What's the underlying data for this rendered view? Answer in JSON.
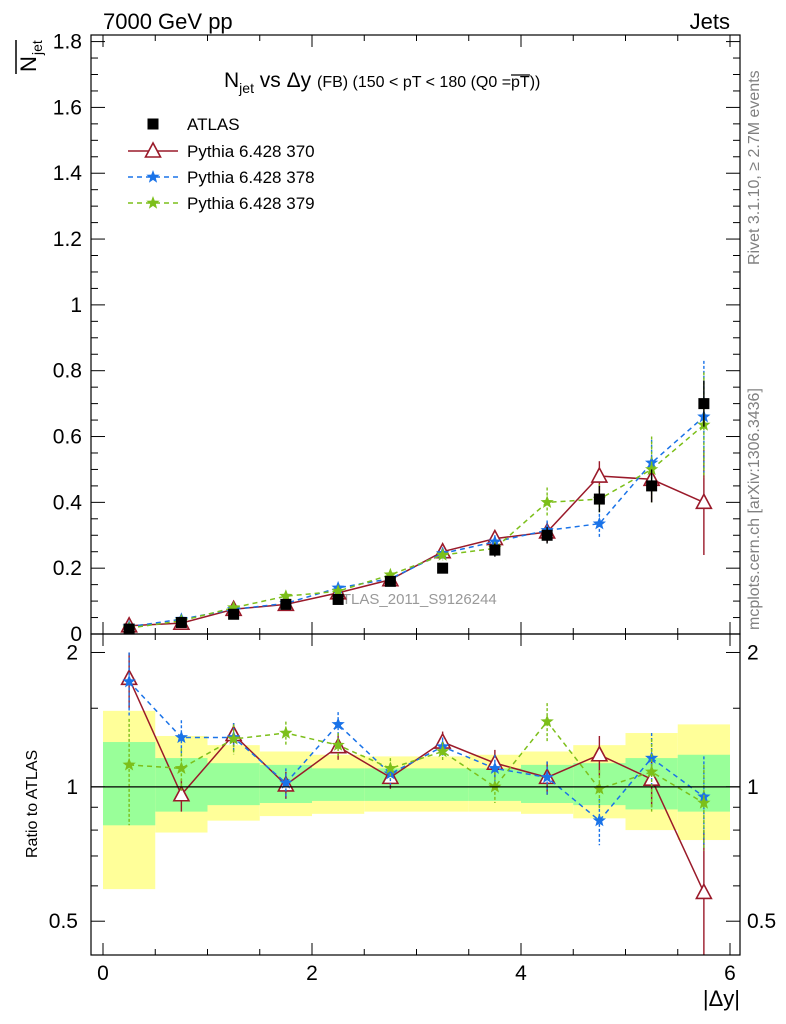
{
  "header": {
    "left": "7000 GeV pp",
    "right": "Jets"
  },
  "side_text": {
    "rivet": "Rivet 3.1.10, ≥ 2.7M events",
    "mcplots": "mcplots.cern.ch [arXiv:1306.3436]"
  },
  "watermark": "ATLAS_2011_S9126244",
  "chart_data": {
    "type": "scatter",
    "title": {
      "prefix": "N",
      "sub": "jet",
      "mid": " vs Δy ",
      "fb": "(FB)",
      "cut": " (150 < pT < 180 (Q0 =",
      "over": "pT",
      "close": "))"
    },
    "ylabel_main": {
      "over": "N",
      "sub": "jet"
    },
    "ylabel_ratio": "Ratio to ATLAS",
    "xlabel": "|Δy|",
    "xlim": [
      0,
      6
    ],
    "ylim": [
      0,
      1.82
    ],
    "ratio_ylim": [
      0.42,
      2.2
    ],
    "x": [
      0.25,
      0.75,
      1.25,
      1.75,
      2.25,
      2.75,
      3.25,
      3.75,
      4.25,
      4.75,
      5.25,
      5.75
    ],
    "x_tick_labels": [
      "0",
      "2",
      "4",
      "6"
    ],
    "x_tick_values": [
      0,
      2,
      4,
      6
    ],
    "y_tick_labels": [
      "0",
      "0.2",
      "0.4",
      "0.6",
      "0.8",
      "1",
      "1.2",
      "1.4",
      "1.6",
      "1.8"
    ],
    "y_tick_values": [
      0,
      0.2,
      0.4,
      0.6,
      0.8,
      1.0,
      1.2,
      1.4,
      1.6,
      1.8
    ],
    "ratio_tick_labels": [
      "0.5",
      "1",
      "2"
    ],
    "ratio_tick_values": [
      0.5,
      1,
      2
    ],
    "bands": {
      "edges": [
        0,
        0.5,
        1.0,
        1.5,
        2.0,
        2.5,
        3.0,
        3.5,
        4.0,
        4.5,
        5.0,
        5.5,
        6.0
      ],
      "yellow_lo": [
        0.59,
        0.79,
        0.84,
        0.86,
        0.87,
        0.88,
        0.88,
        0.88,
        0.87,
        0.85,
        0.8,
        0.76
      ],
      "yellow_hi": [
        1.48,
        1.3,
        1.24,
        1.2,
        1.18,
        1.17,
        1.17,
        1.18,
        1.2,
        1.24,
        1.32,
        1.38
      ],
      "green_lo": [
        0.82,
        0.88,
        0.91,
        0.92,
        0.93,
        0.93,
        0.93,
        0.93,
        0.92,
        0.91,
        0.89,
        0.88
      ],
      "green_hi": [
        1.26,
        1.16,
        1.13,
        1.12,
        1.1,
        1.1,
        1.1,
        1.1,
        1.12,
        1.13,
        1.16,
        1.18
      ],
      "yellow_color": "#ffff99",
      "green_color": "#99ff99"
    },
    "series": [
      {
        "name": "ATLAS",
        "marker": "square",
        "color": "#000000",
        "line": "none",
        "values": [
          0.015,
          0.035,
          0.06,
          0.09,
          0.105,
          0.16,
          0.2,
          0.255,
          0.3,
          0.41,
          0.45,
          0.7
        ],
        "errors": [
          0.003,
          0.005,
          0.006,
          0.008,
          0.01,
          0.012,
          0.015,
          0.02,
          0.025,
          0.04,
          0.05,
          0.07
        ]
      },
      {
        "name": "Pythia 6.428 370",
        "marker": "triangle-open",
        "color": "#9a1a2a",
        "line": "solid",
        "values": [
          0.025,
          0.033,
          0.075,
          0.09,
          0.125,
          0.165,
          0.25,
          0.29,
          0.31,
          0.48,
          0.47,
          0.4
        ],
        "errors": [
          0.003,
          0.004,
          0.007,
          0.008,
          0.01,
          0.012,
          0.016,
          0.02,
          0.03,
          0.045,
          0.07,
          0.16
        ],
        "ratio": [
          1.75,
          0.96,
          1.31,
          1.01,
          1.23,
          1.05,
          1.26,
          1.13,
          1.05,
          1.18,
          1.04,
          0.58
        ],
        "ratio_err": [
          0.25,
          0.08,
          0.08,
          0.07,
          0.08,
          0.06,
          0.07,
          0.08,
          0.09,
          0.12,
          0.14,
          0.22
        ]
      },
      {
        "name": "Pythia 6.428 378",
        "marker": "star",
        "color": "#1a73e8",
        "line": "dashed",
        "values": [
          0.022,
          0.045,
          0.075,
          0.093,
          0.14,
          0.168,
          0.245,
          0.28,
          0.315,
          0.335,
          0.52,
          0.66
        ],
        "errors": [
          0.003,
          0.004,
          0.007,
          0.008,
          0.01,
          0.012,
          0.016,
          0.02,
          0.03,
          0.045,
          0.07,
          0.17
        ],
        "ratio": [
          1.72,
          1.29,
          1.29,
          1.02,
          1.38,
          1.07,
          1.23,
          1.1,
          1.05,
          0.84,
          1.16,
          0.95
        ],
        "ratio_err": [
          0.28,
          0.12,
          0.1,
          0.08,
          0.09,
          0.06,
          0.06,
          0.08,
          0.09,
          0.1,
          0.16,
          0.22
        ]
      },
      {
        "name": "Pythia 6.428 379",
        "marker": "star",
        "color": "#7cbf1a",
        "line": "dashed",
        "values": [
          0.018,
          0.04,
          0.08,
          0.115,
          0.13,
          0.18,
          0.24,
          0.26,
          0.4,
          0.41,
          0.5,
          0.635
        ],
        "errors": [
          0.003,
          0.004,
          0.007,
          0.008,
          0.01,
          0.012,
          0.016,
          0.02,
          0.045,
          0.045,
          0.1,
          0.16
        ],
        "ratio": [
          1.12,
          1.1,
          1.28,
          1.32,
          1.24,
          1.1,
          1.2,
          1.0,
          1.4,
          0.99,
          1.08,
          0.92
        ],
        "ratio_err": [
          0.3,
          0.12,
          0.1,
          0.08,
          0.08,
          0.06,
          0.06,
          0.08,
          0.14,
          0.1,
          0.2,
          0.2
        ]
      }
    ]
  }
}
